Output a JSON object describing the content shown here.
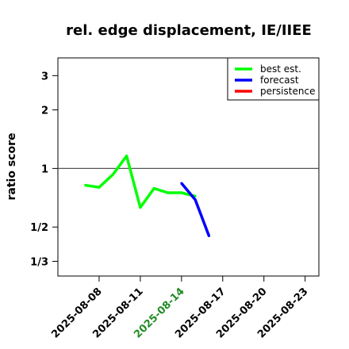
{
  "chart_data": {
    "type": "line",
    "title": "rel. edge displacement, IE/IIEE",
    "xlabel": "",
    "ylabel": "ratio score",
    "y_scale": "log",
    "ylim": [
      0.28,
      3.7
    ],
    "xlim": [
      "2025-08-05",
      "2025-08-24"
    ],
    "y_ticks": [
      {
        "value": 3,
        "label": "3"
      },
      {
        "value": 2,
        "label": "2"
      },
      {
        "value": 1,
        "label": "1"
      },
      {
        "value": 0.5,
        "label": "1/2"
      },
      {
        "value": 0.3333,
        "label": "1/3"
      }
    ],
    "x_ticks": [
      {
        "date": "2025-08-08",
        "label": "2025-08-08",
        "color": "#000000"
      },
      {
        "date": "2025-08-11",
        "label": "2025-08-11",
        "color": "#000000"
      },
      {
        "date": "2025-08-14",
        "label": "2025-08-14",
        "color": "#228B22"
      },
      {
        "date": "2025-08-17",
        "label": "2025-08-17",
        "color": "#000000"
      },
      {
        "date": "2025-08-20",
        "label": "2025-08-20",
        "color": "#000000"
      },
      {
        "date": "2025-08-23",
        "label": "2025-08-23",
        "color": "#000000"
      }
    ],
    "reference_line": {
      "value": 1,
      "color": "#555555"
    },
    "grid": false,
    "legend_position": "top-right",
    "series": [
      {
        "name": "best est.",
        "color": "#00FF00",
        "points": [
          {
            "x": "2025-08-07",
            "y": 0.82
          },
          {
            "x": "2025-08-08",
            "y": 0.8
          },
          {
            "x": "2025-08-09",
            "y": 0.93
          },
          {
            "x": "2025-08-10",
            "y": 1.16
          },
          {
            "x": "2025-08-11",
            "y": 0.63
          },
          {
            "x": "2025-08-12",
            "y": 0.79
          },
          {
            "x": "2025-08-13",
            "y": 0.75
          },
          {
            "x": "2025-08-14",
            "y": 0.75
          },
          {
            "x": "2025-08-15",
            "y": 0.72
          }
        ]
      },
      {
        "name": "forecast",
        "color": "#0000FF",
        "points": [
          {
            "x": "2025-08-14",
            "y": 0.84
          },
          {
            "x": "2025-08-15",
            "y": 0.69
          },
          {
            "x": "2025-08-16",
            "y": 0.45
          }
        ]
      },
      {
        "name": "persistence",
        "color": "#FF0000",
        "points": []
      }
    ]
  }
}
